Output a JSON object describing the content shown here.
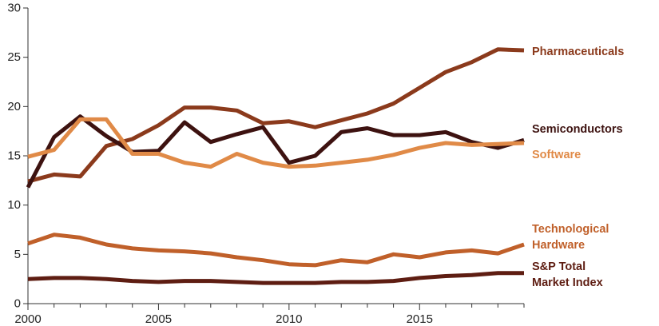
{
  "chart_data": {
    "type": "line",
    "title": "",
    "xlabel": "",
    "ylabel": "",
    "xlim": [
      2000,
      2019
    ],
    "ylim": [
      0,
      30
    ],
    "x_ticks": [
      2000,
      2005,
      2010,
      2015
    ],
    "y_ticks": [
      0,
      5,
      10,
      15,
      20,
      25,
      30
    ],
    "grid": false,
    "legend": "direct-labels-right",
    "x": [
      2000,
      2001,
      2002,
      2003,
      2004,
      2005,
      2006,
      2007,
      2008,
      2009,
      2010,
      2011,
      2012,
      2013,
      2014,
      2015,
      2016,
      2017,
      2018,
      2019
    ],
    "series": [
      {
        "name": "Pharmaceuticals",
        "label_lines": [
          "Pharmaceuticals"
        ],
        "color": "#8b3a1c",
        "values": [
          12.4,
          13.1,
          12.9,
          16.0,
          16.7,
          18.1,
          19.9,
          19.9,
          19.6,
          18.3,
          18.5,
          17.9,
          18.6,
          19.3,
          20.3,
          21.9,
          23.5,
          24.5,
          25.8,
          25.7
        ]
      },
      {
        "name": "Semiconductors",
        "label_lines": [
          "Semiconductors"
        ],
        "color": "#3d1210",
        "values": [
          11.8,
          16.9,
          19.0,
          17.0,
          15.4,
          15.5,
          18.4,
          16.4,
          17.2,
          17.9,
          14.3,
          15.0,
          17.4,
          17.8,
          17.1,
          17.1,
          17.4,
          16.4,
          15.8,
          16.6
        ]
      },
      {
        "name": "Software",
        "label_lines": [
          "Software"
        ],
        "color": "#e08a47",
        "values": [
          14.9,
          15.6,
          18.7,
          18.7,
          15.2,
          15.2,
          14.3,
          13.9,
          15.2,
          14.3,
          13.9,
          14.0,
          14.3,
          14.6,
          15.1,
          15.8,
          16.3,
          16.1,
          16.2,
          16.3
        ]
      },
      {
        "name": "Technological Hardware",
        "label_lines": [
          "Technological",
          "Hardware"
        ],
        "color": "#c0602a",
        "values": [
          6.1,
          7.0,
          6.7,
          6.0,
          5.6,
          5.4,
          5.3,
          5.1,
          4.7,
          4.4,
          4.0,
          3.9,
          4.4,
          4.2,
          5.0,
          4.7,
          5.2,
          5.4,
          5.1,
          6.0
        ]
      },
      {
        "name": "S&P Total Market Index",
        "label_lines": [
          "S&P Total",
          "Market Index"
        ],
        "color": "#5e1d12",
        "values": [
          2.5,
          2.6,
          2.6,
          2.5,
          2.3,
          2.2,
          2.3,
          2.3,
          2.2,
          2.1,
          2.1,
          2.1,
          2.2,
          2.2,
          2.3,
          2.6,
          2.8,
          2.9,
          3.1,
          3.1
        ]
      }
    ]
  }
}
